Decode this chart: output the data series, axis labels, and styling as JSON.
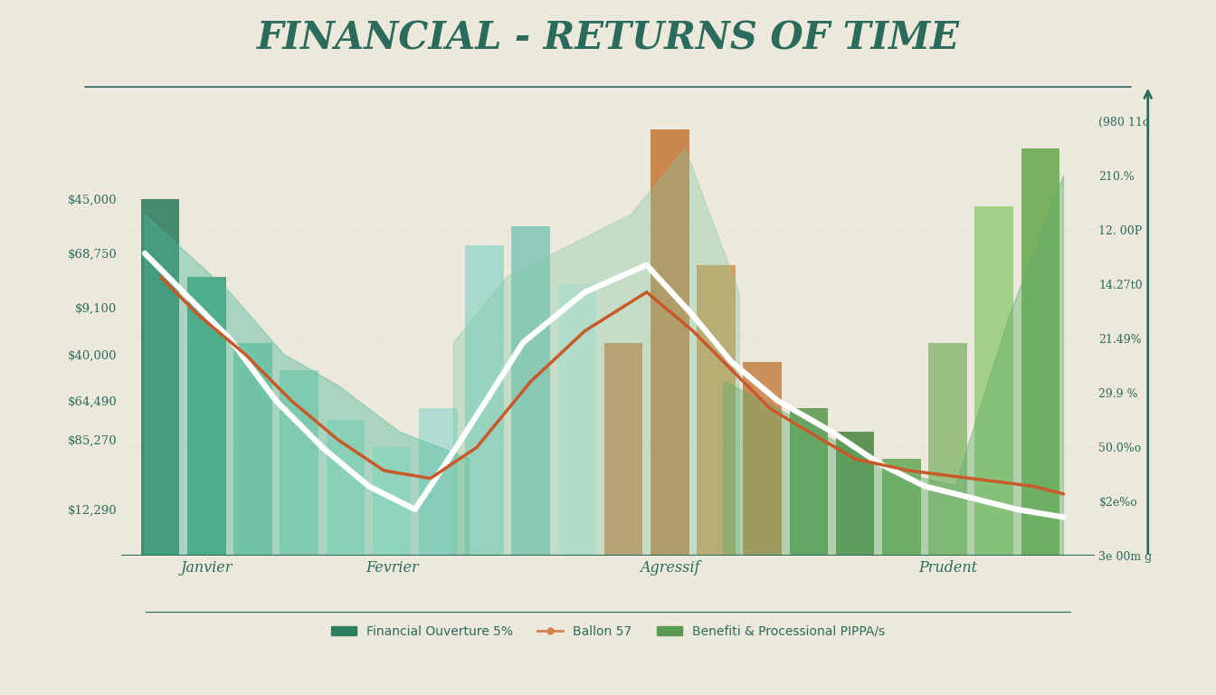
{
  "title": "FINANCIAL - RETURNS OF TIME",
  "background_color": "#ede8dc",
  "text_color": "#2a6b5c",
  "title_color": "#2a6b5c",
  "axis_color": "#2a6b5c",
  "bar_x": [
    0.5,
    1.1,
    1.7,
    2.3,
    2.9,
    3.5,
    4.1,
    4.7,
    5.3,
    5.9,
    6.5,
    7.1,
    7.7,
    8.3,
    8.9,
    9.5,
    10.1,
    10.7,
    11.3,
    11.9
  ],
  "bar_heights": [
    92,
    72,
    55,
    48,
    35,
    28,
    38,
    80,
    85,
    70,
    55,
    110,
    75,
    50,
    38,
    32,
    25,
    55,
    90,
    105
  ],
  "bar_colors": [
    "#2e7d5e",
    "#3d9e78",
    "#7dc8a8",
    "#9ad4bc",
    "#aadfc8",
    "#b8e8d5",
    "#a8dcd0",
    "#9ed8cc",
    "#85c8ba",
    "#c8e8e0",
    "#d4834e",
    "#c87a3a",
    "#d4954e",
    "#c8844a",
    "#5a9a50",
    "#4e8a45",
    "#6aaa5a",
    "#8fbc78",
    "#9acc7a",
    "#6aaa50"
  ],
  "bar_width": 0.5,
  "area1_x": [
    0.3,
    1.4,
    2.1,
    2.8,
    3.6,
    4.5
  ],
  "area1_y": [
    88,
    68,
    52,
    44,
    32,
    25
  ],
  "area1_color": "#4ab898",
  "area1_alpha": 0.4,
  "area2_x": [
    4.3,
    5.0,
    5.8,
    6.6,
    7.3,
    8.0
  ],
  "area2_y": [
    55,
    72,
    80,
    88,
    105,
    68
  ],
  "area2_color": "#7dc8a0",
  "area2_alpha": 0.35,
  "area3_x": [
    7.8,
    8.5,
    9.2,
    10.0,
    10.8,
    11.5,
    12.2
  ],
  "area3_y": [
    45,
    38,
    30,
    22,
    18,
    62,
    98
  ],
  "area3_color": "#5aac68",
  "area3_alpha": 0.4,
  "white_line_x": [
    0.3,
    0.8,
    1.4,
    2.0,
    2.6,
    3.2,
    3.8,
    4.4,
    5.2,
    6.0,
    6.8,
    7.4,
    7.9,
    8.5,
    9.2,
    9.8,
    10.4,
    11.0,
    11.6,
    12.2
  ],
  "white_line_y": [
    78,
    68,
    56,
    40,
    28,
    18,
    12,
    30,
    55,
    68,
    75,
    62,
    50,
    40,
    32,
    24,
    18,
    15,
    12,
    10
  ],
  "red_line_x": [
    0.5,
    1.0,
    1.6,
    2.2,
    2.8,
    3.4,
    4.0,
    4.6,
    5.3,
    6.0,
    6.8,
    7.4,
    7.9,
    8.4,
    8.9,
    9.5,
    10.2,
    11.0,
    11.8,
    12.2
  ],
  "red_line_y": [
    72,
    62,
    52,
    40,
    30,
    22,
    20,
    28,
    45,
    58,
    68,
    58,
    48,
    38,
    32,
    25,
    22,
    20,
    18,
    16
  ],
  "ylim": [
    0,
    120
  ],
  "xlim": [
    0.0,
    12.6
  ],
  "left_ytick_vals": [
    12,
    30,
    40,
    52,
    64,
    78,
    92
  ],
  "left_ytick_labels": [
    "$12,290",
    "$85,270",
    "$64,490",
    "$40,000",
    "$9,100",
    "$68,750",
    "$45,000"
  ],
  "right_ytick_vals": [
    0,
    14,
    28,
    42,
    56,
    70,
    84,
    98,
    112
  ],
  "right_ytick_labels": [
    "3e 00m g",
    "$2e%o",
    "50.0%o",
    "29.9 %",
    "21.49%",
    "14.27t0",
    "12. 00P",
    "210.%",
    "(980 11o"
  ],
  "xtick_vals": [
    1.1,
    3.5,
    7.1,
    10.7
  ],
  "xtick_labels": [
    "Janvier",
    "Fevrier",
    "Agressif",
    "Prudent"
  ],
  "legend_labels": [
    "Financial Ouverture 5%",
    "Ballon 57",
    "Benefiti & Processional PIPPA/s"
  ],
  "legend_colors": [
    "#2e7d5e",
    "#d4834e",
    "#5a9a50"
  ]
}
